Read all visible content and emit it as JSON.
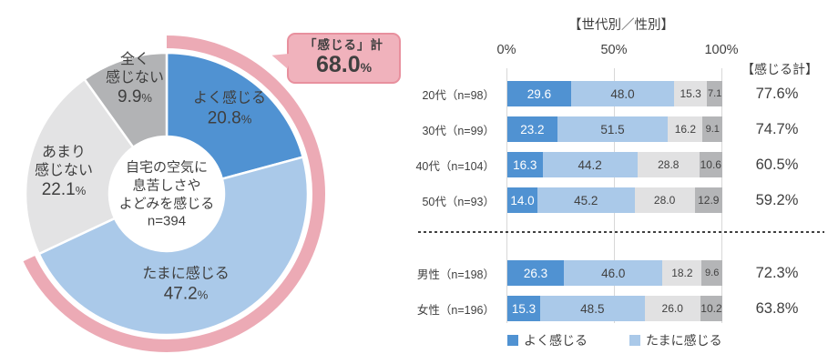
{
  "page": {
    "background": "#ffffff"
  },
  "donut_center": {
    "line1": "自宅の空気に",
    "line2": "息苦しさや",
    "line3": "よどみを感じる",
    "n": "n=394"
  },
  "callout": {
    "label": "「感じる」計",
    "value": "68.0",
    "unit": "%"
  },
  "bar_header": {
    "title": "【世代別／性別】",
    "totals_header": "【感じる計】"
  },
  "axis": {
    "tick0": "0%",
    "tick1": "50%",
    "tick2": "100%"
  },
  "legend": [
    {
      "label": "よく感じる",
      "color": "#5092d2"
    },
    {
      "label": "たまに感じる",
      "color": "#aac9e9"
    }
  ],
  "chart_data": [
    {
      "type": "pie",
      "title": "自宅の空気に息苦しさやよどみを感じる",
      "n_label": "n=394",
      "labels": [
        "よく感じる",
        "たまに感じる",
        "あまり感じない",
        "全く感じない"
      ],
      "values": [
        20.8,
        47.2,
        22.1,
        9.9
      ],
      "colors": [
        "#5092d2",
        "#aac9e9",
        "#e3e3e4",
        "#b2b3b5"
      ],
      "donut_hole": true,
      "annotation": {
        "label": "「感じる」計",
        "percent": 68.0,
        "ring_color": "#ecaab5",
        "box_color": "#f0b2bc",
        "box_border_color": "#e8909e"
      }
    },
    {
      "type": "bar",
      "orientation": "horizontal",
      "stacked": true,
      "title": "【世代別／性別】",
      "categories": [
        "20代（n=98）",
        "30代（n=99）",
        "40代（n=104）",
        "50代（n=93）",
        "男性（n=198）",
        "女性（n=196）"
      ],
      "group_split_after": 4,
      "series": [
        {
          "name": "よく感じる",
          "color": "#5092d2",
          "values": [
            29.6,
            23.2,
            16.3,
            14.0,
            26.3,
            15.3
          ]
        },
        {
          "name": "たまに感じる",
          "color": "#aac9e9",
          "values": [
            48.0,
            51.5,
            44.2,
            45.2,
            46.0,
            48.5
          ]
        },
        {
          "name": "あまり感じない",
          "color": "#e1e1e2",
          "values": [
            15.3,
            16.2,
            28.8,
            28.0,
            18.2,
            26.0
          ]
        },
        {
          "name": "全く感じない",
          "color": "#b4b5b7",
          "values": [
            7.1,
            9.1,
            10.6,
            12.9,
            9.6,
            10.2
          ]
        }
      ],
      "totals_header": "【感じる計】",
      "totals": [
        "77.6%",
        "74.7%",
        "60.5%",
        "59.2%",
        "72.3%",
        "63.8%"
      ],
      "xlim": [
        0,
        100
      ],
      "x_ticks": [
        "0%",
        "50%",
        "100%"
      ],
      "legend": [
        "よく感じる",
        "たまに感じる"
      ],
      "grid": true,
      "legend_position": "bottom"
    }
  ]
}
